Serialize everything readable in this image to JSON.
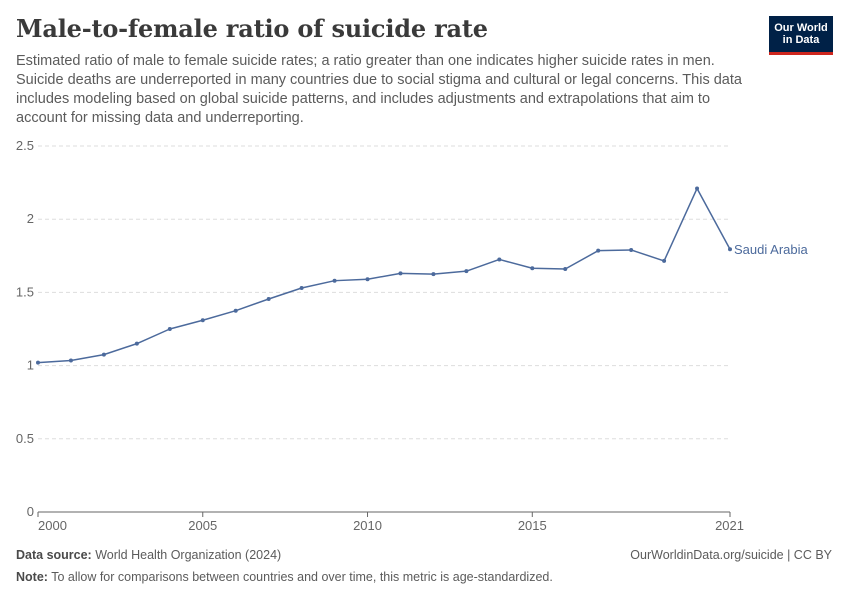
{
  "header": {
    "title": "Male-to-female ratio of suicide rate",
    "subtitle": "Estimated ratio of male to female suicide rates; a ratio greater than one indicates higher suicide rates in men. Suicide deaths are underreported in many countries due to social stigma and cultural or legal concerns. This data includes modeling based on global suicide patterns, and includes adjustments and extrapolations that aim to account for missing data and underreporting."
  },
  "logo": {
    "line1": "Our World",
    "line2": "in Data"
  },
  "footer": {
    "source_label": "Data source:",
    "source_text": "World Health Organization (2024)",
    "note_label": "Note:",
    "note_text": "To allow for comparisons between countries and over time, this metric is age-standardized.",
    "credit": "OurWorldinData.org/suicide | CC BY"
  },
  "colors": {
    "series": "#4c6a9c",
    "grid": "#dddddd",
    "axis": "#666666",
    "logo_bg": "#002147",
    "logo_accent": "#ce261e"
  },
  "chart_data": {
    "type": "line",
    "title": "Male-to-female ratio of suicide rate",
    "xlabel": "",
    "ylabel": "",
    "xlim": [
      2000,
      2021
    ],
    "ylim": [
      0,
      2.5
    ],
    "grid": true,
    "y_ticks": [
      0,
      0.5,
      1,
      1.5,
      2,
      2.5
    ],
    "y_tick_labels": [
      "0",
      "0.5",
      "1",
      "1.5",
      "2",
      "2.5"
    ],
    "x_ticks": [
      2000,
      2005,
      2010,
      2015,
      2021
    ],
    "x_tick_labels": [
      "2000",
      "2005",
      "2010",
      "2015",
      "2021"
    ],
    "series": [
      {
        "name": "Saudi Arabia",
        "x": [
          2000,
          2001,
          2002,
          2003,
          2004,
          2005,
          2006,
          2007,
          2008,
          2009,
          2010,
          2011,
          2012,
          2013,
          2014,
          2015,
          2016,
          2017,
          2018,
          2019,
          2020,
          2021
        ],
        "values": [
          1.02,
          1.035,
          1.075,
          1.15,
          1.25,
          1.31,
          1.375,
          1.455,
          1.53,
          1.58,
          1.59,
          1.63,
          1.625,
          1.645,
          1.725,
          1.665,
          1.66,
          1.785,
          1.79,
          1.715,
          2.21,
          1.795
        ]
      }
    ]
  }
}
